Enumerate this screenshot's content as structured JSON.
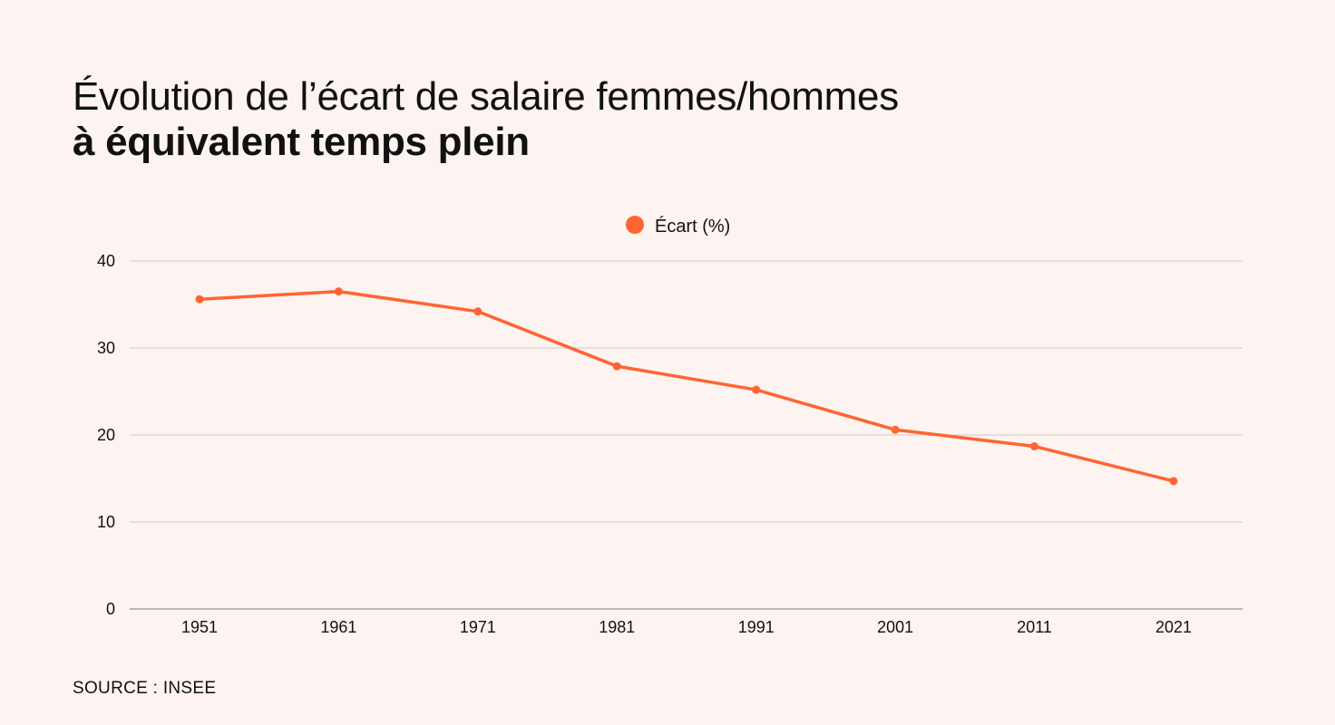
{
  "title": {
    "line1": "Évolution de l’écart de salaire femmes/hommes",
    "line2": "à équivalent temps plein"
  },
  "source": "SOURCE : INSEE",
  "colors": {
    "background": "#FDF3F1",
    "series": "#FF6433",
    "grid": "#D4C9C7",
    "axis": "#9A9190",
    "text": "#111111"
  },
  "chart_data": {
    "type": "line",
    "x": [
      "1951",
      "1961",
      "1971",
      "1981",
      "1991",
      "2001",
      "2011",
      "2021"
    ],
    "series": [
      {
        "name": "Écart (%)",
        "values": [
          35.6,
          36.5,
          34.2,
          27.9,
          25.2,
          20.6,
          18.7,
          14.7
        ]
      }
    ],
    "ylim": [
      0,
      40
    ],
    "yticks": [
      0,
      10,
      20,
      30,
      40
    ],
    "grid": true,
    "legend": "top-center"
  }
}
